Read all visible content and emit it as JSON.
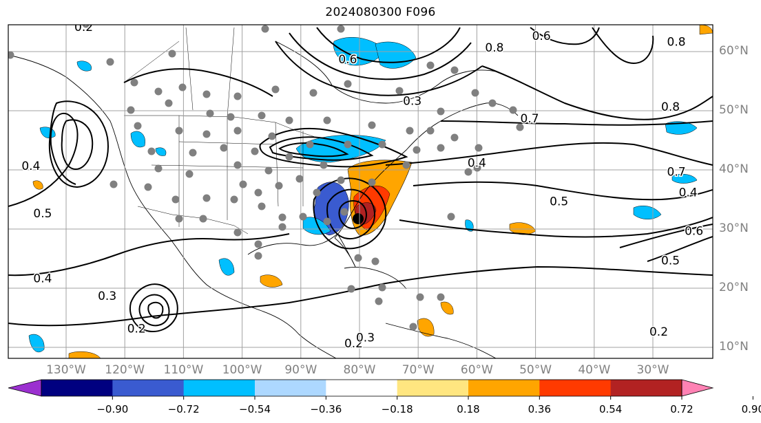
{
  "title": "2024080300 F096",
  "latitude_labels": [
    {
      "text": "60°N",
      "value": 60
    },
    {
      "text": "50°N",
      "value": 50
    },
    {
      "text": "40°N",
      "value": 40
    },
    {
      "text": "30°N",
      "value": 30
    },
    {
      "text": "20°N",
      "value": 20
    },
    {
      "text": "10°N",
      "value": 10
    }
  ],
  "longitude_labels": [
    {
      "text": "130°W",
      "value": -130
    },
    {
      "text": "120°W",
      "value": -120
    },
    {
      "text": "110°W",
      "value": -110
    },
    {
      "text": "100°W",
      "value": -100
    },
    {
      "text": "90°W",
      "value": -90
    },
    {
      "text": "80°W",
      "value": -80
    },
    {
      "text": "70°W",
      "value": -70
    },
    {
      "text": "60°W",
      "value": -60
    },
    {
      "text": "50°W",
      "value": -50
    },
    {
      "text": "40°W",
      "value": -40
    },
    {
      "text": "30°W",
      "value": -30
    }
  ],
  "colorbar": {
    "ticks": [
      "−0.90",
      "−0.72",
      "−0.54",
      "−0.36",
      "−0.18",
      "0.18",
      "0.36",
      "0.54",
      "0.72",
      "0.90"
    ],
    "colors": [
      "#9b30d0",
      "#000080",
      "#3a5bd0",
      "#00bfff",
      "#add8ff",
      "#ffffff",
      "#ffe680",
      "#ffa500",
      "#ff3a00",
      "#b22222",
      "#ff82b4"
    ]
  },
  "contour_labels": [
    {
      "text": "0.2",
      "lon": -127,
      "lat": 63.5
    },
    {
      "text": "0.6",
      "lon": -82,
      "lat": 58
    },
    {
      "text": "0.8",
      "lon": -57,
      "lat": 60
    },
    {
      "text": "0.6",
      "lon": -49,
      "lat": 62
    },
    {
      "text": "0.8",
      "lon": -26,
      "lat": 61
    },
    {
      "text": "0.3",
      "lon": -71,
      "lat": 51
    },
    {
      "text": "0.8",
      "lon": -27,
      "lat": 50
    },
    {
      "text": "0.7",
      "lon": -51,
      "lat": 48
    },
    {
      "text": "0.4",
      "lon": -60,
      "lat": 40.5
    },
    {
      "text": "0.7",
      "lon": -26,
      "lat": 39
    },
    {
      "text": "0.5",
      "lon": -46,
      "lat": 34
    },
    {
      "text": "0.4",
      "lon": -24,
      "lat": 35.5
    },
    {
      "text": "0.6",
      "lon": -23,
      "lat": 29
    },
    {
      "text": "0.5",
      "lon": -27,
      "lat": 24
    },
    {
      "text": "0.5",
      "lon": -134,
      "lat": 32
    },
    {
      "text": "0.4",
      "lon": -136,
      "lat": 40
    },
    {
      "text": "0.4",
      "lon": -134,
      "lat": 21
    },
    {
      "text": "0.3",
      "lon": -123,
      "lat": 18
    },
    {
      "text": "0.2",
      "lon": -118,
      "lat": 12.5
    },
    {
      "text": "0.2",
      "lon": -29,
      "lat": 12
    },
    {
      "text": "0.2",
      "lon": -81,
      "lat": 10
    },
    {
      "text": "0.3",
      "lon": -79,
      "lat": 11
    }
  ]
}
